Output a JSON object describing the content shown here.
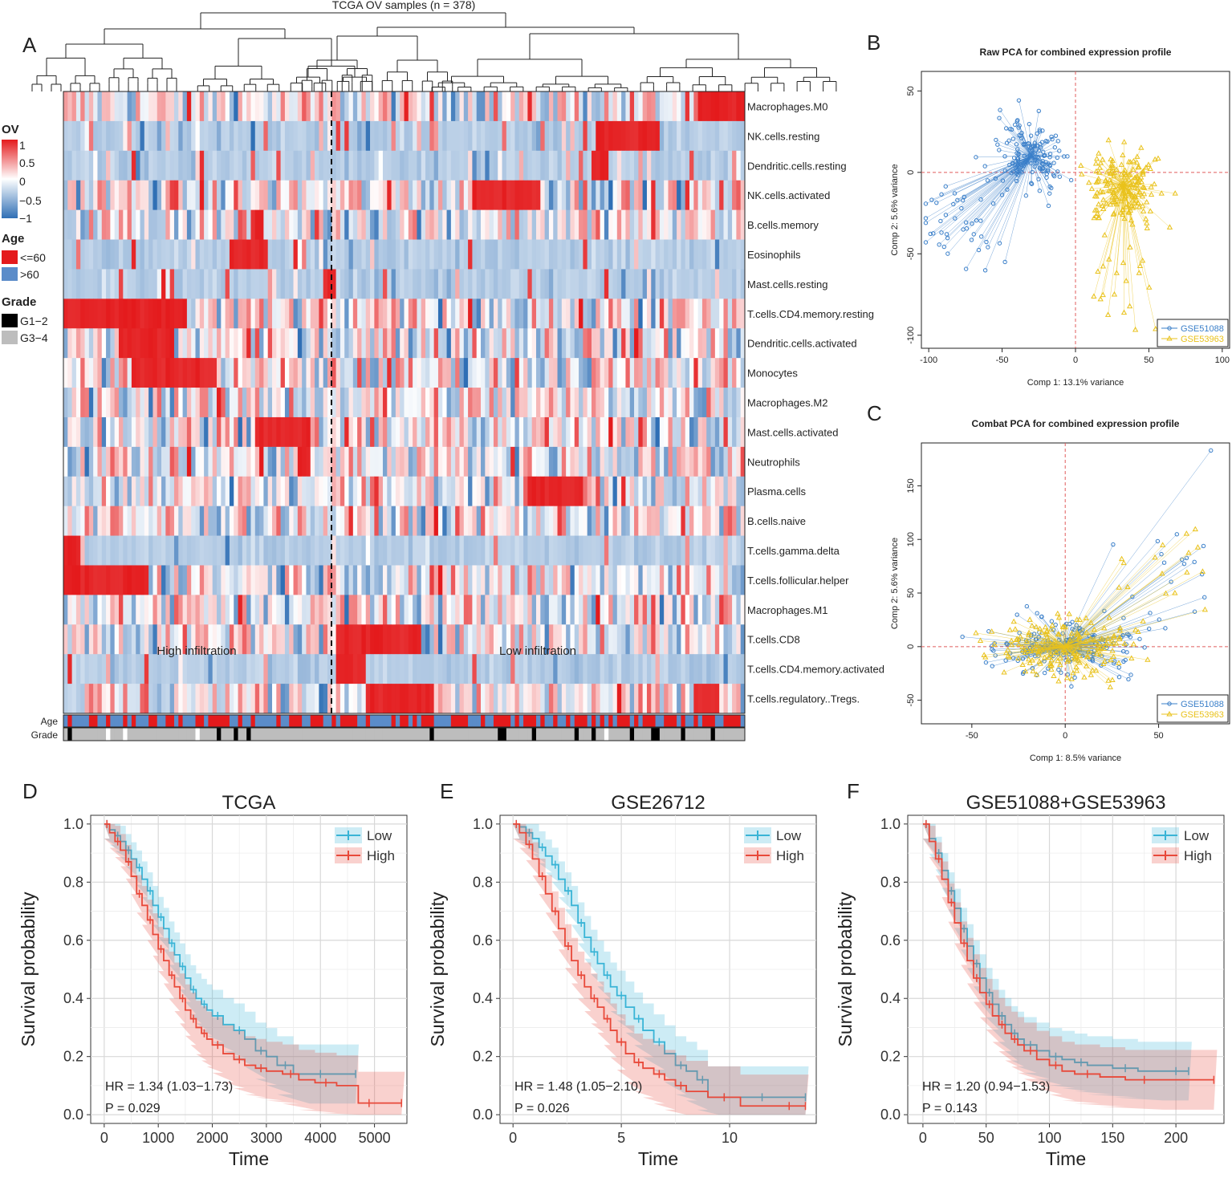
{
  "panel_letters": {
    "a": "A",
    "b": "B",
    "c": "C",
    "d": "D",
    "e": "E",
    "f": "F"
  },
  "colors": {
    "red": "#e41a1c",
    "blue": "#3d7ebf",
    "heat_red": "#e8312a",
    "heat_blue": "#2f6fb5",
    "light_blue": "#c6d8ea",
    "age_red": "#e41a1c",
    "age_blue": "#5b8cc9",
    "grade_black": "#000000",
    "grade_gray": "#bdbdbd",
    "pca_blue": "#3a7fc9",
    "pca_yellow": "#e9c21b",
    "km_low": "#39b4d6",
    "km_high": "#e8493a"
  },
  "chart_data": [
    {
      "type": "heatmap",
      "title": "TCGA OV samples (n = 378)",
      "n_samples": 378,
      "legend": {
        "ov_title": "OV",
        "ov_ticks": [
          "1",
          "0.5",
          "0",
          "−0.5",
          "−1"
        ],
        "age_title": "Age",
        "age_levels": [
          "<=60",
          ">60"
        ],
        "grade_title": "Grade",
        "grade_levels": [
          "G1−2",
          "G3−4"
        ]
      },
      "rows": [
        "Macrophages.M0",
        "NK.cells.resting",
        "Dendritic.cells.resting",
        "NK.cells.activated",
        "B.cells.memory",
        "Eosinophils",
        "Mast.cells.resting",
        "T.cells.CD4.memory.resting",
        "Dendritic.cells.activated",
        "Monocytes",
        "Macrophages.M2",
        "Mast.cells.activated",
        "Neutrophils",
        "Plasma.cells",
        "B.cells.naive",
        "T.cells.gamma.delta",
        "T.cells.follicular.helper",
        "Macrophages.M1",
        "T.cells.CD8",
        "T.cells.CD4.memory.activated",
        "T.cells.regulatory..Tregs."
      ],
      "annotation_rows": [
        "Age",
        "Grade"
      ],
      "clusters": [
        "High infiltration",
        "Low infiltration"
      ]
    },
    {
      "type": "scatter",
      "title": "Raw PCA for combined expression profile",
      "xlabel": "Comp 1: 13.1% variance",
      "ylabel": "Comp 2: 5.6% variance",
      "xlim": [
        -105,
        105
      ],
      "ylim": [
        -108,
        62
      ],
      "xticks": [
        -100,
        -50,
        0,
        50,
        100
      ],
      "yticks": [
        50,
        0,
        -50,
        -100
      ],
      "series": [
        {
          "name": "GSE51088",
          "centroid": [
            -30,
            10
          ]
        },
        {
          "name": "GSE53963",
          "centroid": [
            33,
            -8
          ]
        }
      ],
      "legend": [
        "GSE51088",
        "GSE53963"
      ]
    },
    {
      "type": "scatter",
      "title": "Combat PCA for combined expression profile",
      "xlabel": "Comp 1: 8.5% variance",
      "ylabel": "Comp 2: 5.6% variance",
      "xlim": [
        -77,
        88
      ],
      "ylim": [
        -72,
        190
      ],
      "xticks": [
        -50,
        0,
        50
      ],
      "yticks": [
        150,
        100,
        50,
        0,
        -50
      ],
      "series": [
        {
          "name": "GSE51088",
          "centroid": [
            0,
            0
          ]
        },
        {
          "name": "GSE53963",
          "centroid": [
            0,
            0
          ]
        }
      ],
      "legend": [
        "GSE51088",
        "GSE53963"
      ]
    },
    {
      "type": "line",
      "title": "TCGA",
      "xlabel": "Time",
      "ylabel": "Survival probability",
      "xlim": [
        -250,
        5600
      ],
      "ylim": [
        -0.03,
        1.03
      ],
      "xticks": [
        0,
        1000,
        2000,
        3000,
        4000,
        5000
      ],
      "yticks": [
        0.0,
        0.2,
        0.4,
        0.6,
        0.8,
        1.0
      ],
      "xtick_labels": [
        "0",
        "1000",
        "2000",
        "3000",
        "4000",
        "5000"
      ],
      "ytick_labels": [
        "0.0",
        "0.2",
        "0.4",
        "0.6",
        "0.8",
        "1.0"
      ],
      "legend": [
        "Low",
        "High"
      ],
      "hr_text": "HR = 1.34 (1.03−1.73)",
      "p_text": "P = 0.029",
      "series": [
        {
          "name": "Low",
          "x": [
            0,
            100,
            200,
            300,
            400,
            500,
            600,
            700,
            800,
            900,
            1000,
            1100,
            1200,
            1300,
            1400,
            1500,
            1600,
            1700,
            1800,
            1900,
            2000,
            2200,
            2400,
            2600,
            2800,
            3000,
            3200,
            3500,
            3800,
            4200,
            4650
          ],
          "y": [
            1.0,
            0.98,
            0.96,
            0.94,
            0.91,
            0.88,
            0.85,
            0.81,
            0.77,
            0.72,
            0.68,
            0.64,
            0.59,
            0.55,
            0.51,
            0.47,
            0.43,
            0.4,
            0.38,
            0.36,
            0.34,
            0.31,
            0.29,
            0.26,
            0.22,
            0.2,
            0.17,
            0.14,
            0.14,
            0.14,
            0.14
          ]
        },
        {
          "name": "High",
          "x": [
            0,
            100,
            200,
            300,
            400,
            500,
            600,
            700,
            800,
            900,
            1000,
            1100,
            1200,
            1300,
            1400,
            1500,
            1600,
            1700,
            1800,
            1900,
            2000,
            2200,
            2400,
            2600,
            2800,
            3000,
            3300,
            3600,
            3900,
            4300,
            4700,
            5100,
            5500
          ],
          "y": [
            1.0,
            0.97,
            0.94,
            0.91,
            0.87,
            0.82,
            0.76,
            0.72,
            0.67,
            0.62,
            0.57,
            0.53,
            0.48,
            0.44,
            0.4,
            0.36,
            0.33,
            0.3,
            0.28,
            0.26,
            0.24,
            0.21,
            0.19,
            0.17,
            0.16,
            0.15,
            0.14,
            0.12,
            0.11,
            0.1,
            0.04,
            0.04,
            0.04
          ]
        }
      ]
    },
    {
      "type": "line",
      "title": "GSE26712",
      "xlabel": "Time",
      "ylabel": "Survival probability",
      "xlim": [
        -0.6,
        14.0
      ],
      "ylim": [
        -0.03,
        1.03
      ],
      "xticks": [
        0,
        5,
        10
      ],
      "yticks": [
        0.0,
        0.2,
        0.4,
        0.6,
        0.8,
        1.0
      ],
      "xtick_labels": [
        "0",
        "5",
        "10"
      ],
      "ytick_labels": [
        "0.0",
        "0.2",
        "0.4",
        "0.6",
        "0.8",
        "1.0"
      ],
      "legend": [
        "Low",
        "High"
      ],
      "hr_text": "HR = 1.48 (1.05−2.10)",
      "p_text": "P = 0.026",
      "series": [
        {
          "name": "Low",
          "x": [
            0,
            0.3,
            0.6,
            0.9,
            1.2,
            1.5,
            1.8,
            2.1,
            2.4,
            2.7,
            3.0,
            3.3,
            3.6,
            3.9,
            4.2,
            4.5,
            4.8,
            5.2,
            5.6,
            6.0,
            6.5,
            7.0,
            7.5,
            8.0,
            8.5,
            9.0,
            9.5,
            10.0,
            11.0,
            12.0,
            13.5
          ],
          "y": [
            1.0,
            0.99,
            0.97,
            0.95,
            0.92,
            0.89,
            0.86,
            0.81,
            0.77,
            0.72,
            0.66,
            0.61,
            0.56,
            0.52,
            0.48,
            0.44,
            0.41,
            0.37,
            0.33,
            0.29,
            0.25,
            0.21,
            0.17,
            0.15,
            0.12,
            0.06,
            0.06,
            0.06,
            0.06,
            0.06,
            0.06
          ]
        },
        {
          "name": "High",
          "x": [
            0,
            0.3,
            0.6,
            0.9,
            1.2,
            1.5,
            1.8,
            2.1,
            2.4,
            2.7,
            3.0,
            3.3,
            3.6,
            3.9,
            4.2,
            4.5,
            4.8,
            5.2,
            5.6,
            6.0,
            6.5,
            7.0,
            7.5,
            8.0,
            9.0,
            10.5,
            12.0,
            13.5
          ],
          "y": [
            1.0,
            0.97,
            0.93,
            0.88,
            0.82,
            0.76,
            0.7,
            0.64,
            0.58,
            0.53,
            0.48,
            0.44,
            0.4,
            0.37,
            0.33,
            0.29,
            0.25,
            0.21,
            0.18,
            0.16,
            0.14,
            0.12,
            0.1,
            0.08,
            0.06,
            0.03,
            0.03,
            0.03
          ]
        }
      ]
    },
    {
      "type": "line",
      "title": "GSE51088+GSE53963",
      "xlabel": "Time",
      "ylabel": "Survival probability",
      "xlim": [
        -12,
        238
      ],
      "ylim": [
        -0.03,
        1.03
      ],
      "xticks": [
        0,
        50,
        100,
        150,
        200
      ],
      "yticks": [
        0.0,
        0.2,
        0.4,
        0.6,
        0.8,
        1.0
      ],
      "xtick_labels": [
        "0",
        "50",
        "100",
        "150",
        "200"
      ],
      "ytick_labels": [
        "0.0",
        "0.2",
        "0.4",
        "0.6",
        "0.8",
        "1.0"
      ],
      "legend": [
        "Low",
        "High"
      ],
      "hr_text": "HR = 1.20 (0.94−1.53)",
      "p_text": "P = 0.143",
      "series": [
        {
          "name": "Low",
          "x": [
            0,
            5,
            10,
            15,
            20,
            25,
            30,
            35,
            40,
            45,
            50,
            55,
            60,
            65,
            70,
            75,
            80,
            90,
            100,
            110,
            120,
            130,
            150,
            170,
            190,
            210
          ],
          "y": [
            1.0,
            0.95,
            0.9,
            0.84,
            0.77,
            0.71,
            0.64,
            0.58,
            0.52,
            0.47,
            0.42,
            0.38,
            0.34,
            0.31,
            0.28,
            0.26,
            0.24,
            0.22,
            0.2,
            0.19,
            0.18,
            0.17,
            0.16,
            0.15,
            0.15,
            0.15
          ]
        },
        {
          "name": "High",
          "x": [
            0,
            5,
            10,
            15,
            20,
            25,
            30,
            35,
            40,
            45,
            50,
            55,
            60,
            65,
            70,
            75,
            80,
            90,
            100,
            110,
            120,
            140,
            160,
            190,
            230
          ],
          "y": [
            1.0,
            0.94,
            0.88,
            0.81,
            0.73,
            0.66,
            0.59,
            0.53,
            0.47,
            0.42,
            0.38,
            0.34,
            0.31,
            0.28,
            0.26,
            0.24,
            0.22,
            0.19,
            0.17,
            0.15,
            0.14,
            0.13,
            0.12,
            0.12,
            0.12
          ]
        }
      ]
    }
  ]
}
